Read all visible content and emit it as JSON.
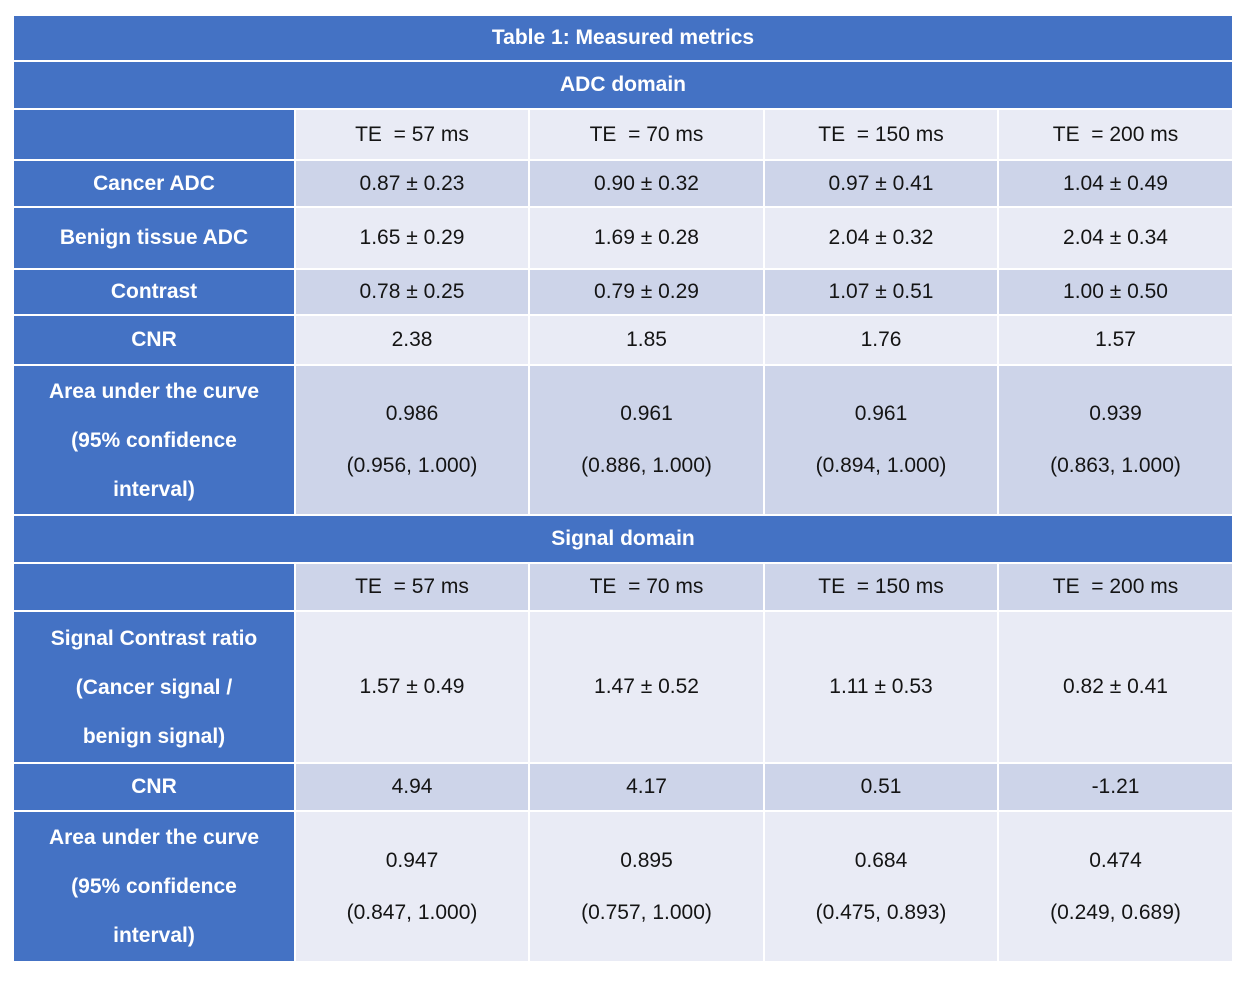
{
  "title": "Table 1: Measured metrics",
  "colors": {
    "header_blue": "#4472c4",
    "band_dark": "#cdd4e9",
    "band_light": "#e9ebf5",
    "text_on_blue": "#ffffff",
    "text_values": "#141414"
  },
  "adc": {
    "header": "ADC domain",
    "col_headers": [
      "TE  = 57 ms",
      "TE  = 70 ms",
      "TE  = 150 ms",
      "TE  = 200 ms"
    ],
    "cancer": {
      "label": "Cancer ADC",
      "values": [
        "0.87 ± 0.23",
        "0.90 ± 0.32",
        "0.97 ± 0.41",
        "1.04 ± 0.49"
      ]
    },
    "benign": {
      "label": "Benign tissue ADC",
      "values": [
        "1.65 ± 0.29",
        "1.69 ± 0.28",
        "2.04 ± 0.32",
        "2.04 ± 0.34"
      ]
    },
    "contrast": {
      "label": "Contrast",
      "values": [
        "0.78 ± 0.25",
        "0.79 ± 0.29",
        "1.07 ± 0.51",
        "1.00 ± 0.50"
      ]
    },
    "cnr": {
      "label": "CNR",
      "values": [
        "2.38",
        "1.85",
        "1.76",
        "1.57"
      ]
    },
    "auc": {
      "label": "Area under the curve (95% confidence interval)",
      "label_lines": [
        "Area under the curve",
        "(95% confidence",
        "interval)"
      ],
      "values": [
        {
          "main": "0.986",
          "ci": "(0.956, 1.000)"
        },
        {
          "main": "0.961",
          "ci": "(0.886, 1.000)"
        },
        {
          "main": "0.961",
          "ci": "(0.894, 1.000)"
        },
        {
          "main": "0.939",
          "ci": "(0.863, 1.000)"
        }
      ]
    }
  },
  "signal": {
    "header": "Signal domain",
    "col_headers": [
      "TE  = 57 ms",
      "TE  = 70 ms",
      "TE  = 150 ms",
      "TE  = 200 ms"
    ],
    "scr": {
      "label": "Signal Contrast ratio (Cancer signal / benign signal)",
      "label_lines": [
        "Signal Contrast ratio",
        "(Cancer signal /",
        "benign signal)"
      ],
      "values": [
        "1.57 ± 0.49",
        "1.47 ± 0.52",
        "1.11 ± 0.53",
        "0.82 ± 0.41"
      ]
    },
    "cnr": {
      "label": "CNR",
      "values": [
        "4.94",
        "4.17",
        "0.51",
        "-1.21"
      ]
    },
    "auc": {
      "label": "Area under the curve (95% confidence interval)",
      "label_lines": [
        "Area under the curve",
        "(95% confidence",
        "interval)"
      ],
      "values": [
        {
          "main": "0.947",
          "ci": "(0.847, 1.000)"
        },
        {
          "main": "0.895",
          "ci": "(0.757, 1.000)"
        },
        {
          "main": "0.684",
          "ci": "(0.475, 0.893)"
        },
        {
          "main": "0.474",
          "ci": "(0.249, 0.689)"
        }
      ]
    }
  }
}
